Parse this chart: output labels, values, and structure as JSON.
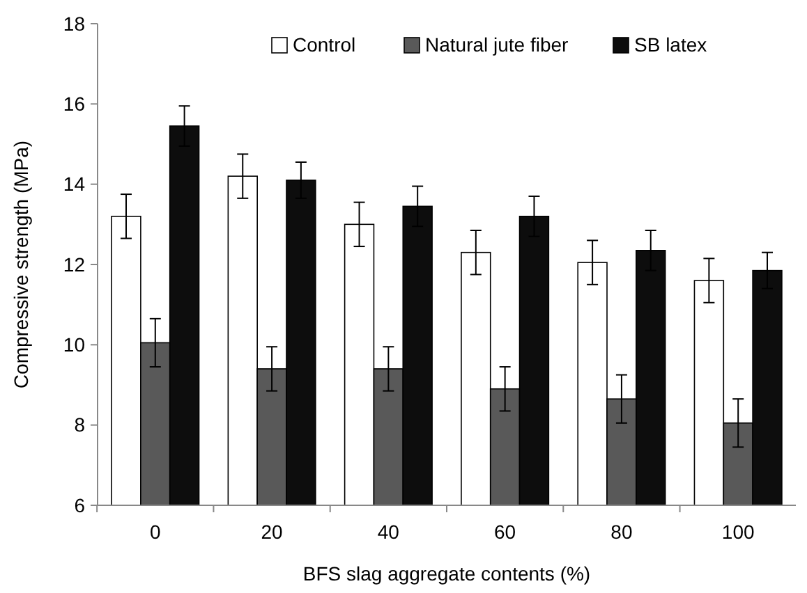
{
  "chart_data": {
    "type": "bar",
    "xlabel": "BFS slag aggregate contents (%)",
    "ylabel": "Compressive strength (MPa)",
    "categories": [
      "0",
      "20",
      "40",
      "60",
      "80",
      "100"
    ],
    "series": [
      {
        "name": "Control",
        "color": "#ffffff",
        "values": [
          13.2,
          14.2,
          13.0,
          12.3,
          12.05,
          11.6
        ],
        "errors": [
          0.55,
          0.55,
          0.55,
          0.55,
          0.55,
          0.55
        ]
      },
      {
        "name": "Natural jute fiber",
        "color": "#595959",
        "values": [
          10.05,
          9.4,
          9.4,
          8.9,
          8.65,
          8.05
        ],
        "errors": [
          0.6,
          0.55,
          0.55,
          0.55,
          0.6,
          0.6
        ]
      },
      {
        "name": "SB latex",
        "color": "#0d0d0d",
        "values": [
          15.45,
          14.1,
          13.45,
          13.2,
          12.35,
          11.85
        ],
        "errors": [
          0.5,
          0.45,
          0.5,
          0.5,
          0.5,
          0.45
        ]
      }
    ],
    "ylim": [
      6,
      18
    ],
    "yticks": [
      6,
      8,
      10,
      12,
      14,
      16,
      18
    ],
    "grid": false,
    "legend": "top right"
  }
}
